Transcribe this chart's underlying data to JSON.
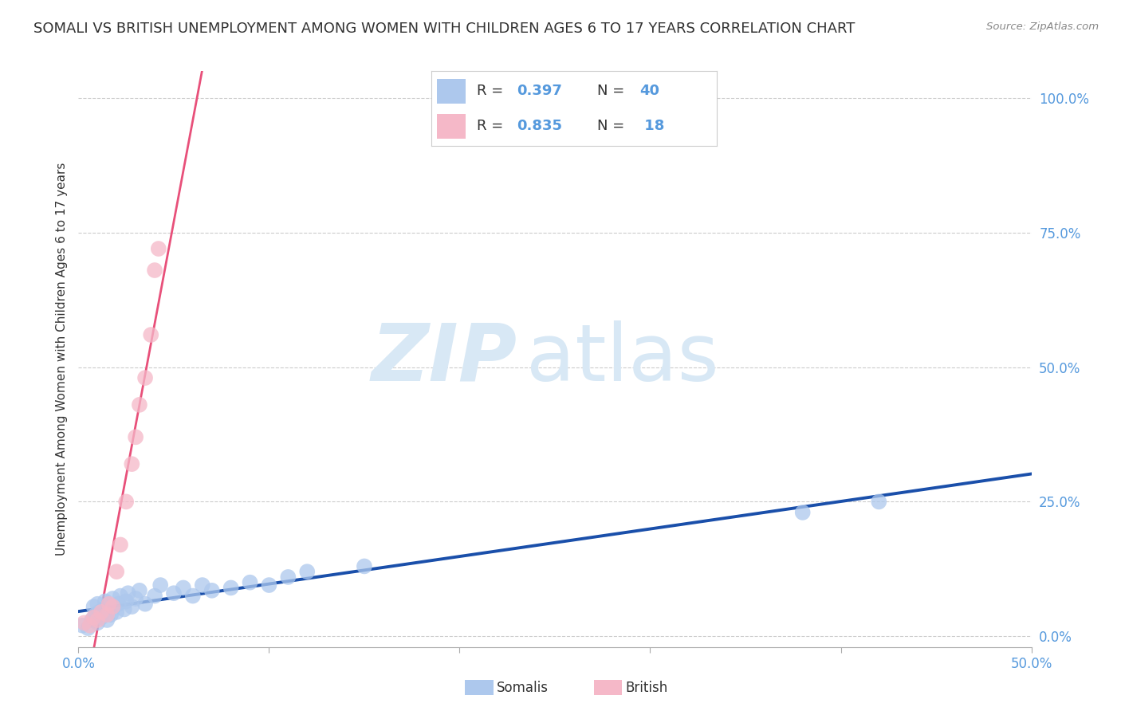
{
  "title": "SOMALI VS BRITISH UNEMPLOYMENT AMONG WOMEN WITH CHILDREN AGES 6 TO 17 YEARS CORRELATION CHART",
  "source": "Source: ZipAtlas.com",
  "ylabel": "Unemployment Among Women with Children Ages 6 to 17 years",
  "xlim": [
    0.0,
    0.5
  ],
  "ylim": [
    -0.02,
    1.05
  ],
  "x_ticks": [
    0.0,
    0.1,
    0.2,
    0.3,
    0.4,
    0.5
  ],
  "y_ticks": [
    0.0,
    0.25,
    0.5,
    0.75,
    1.0
  ],
  "x_tick_labels": [
    "0.0%",
    "",
    "",
    "",
    "",
    "50.0%"
  ],
  "y_tick_labels": [
    "",
    "25.0%",
    "50.0%",
    "75.0%",
    "100.0%"
  ],
  "somali_R": 0.397,
  "somali_N": 40,
  "british_R": 0.835,
  "british_N": 18,
  "somali_color": "#adc8ed",
  "somali_line_color": "#1a4faa",
  "british_color": "#f5b8c8",
  "british_line_color": "#e8507a",
  "tick_color": "#5599dd",
  "background_color": "#ffffff",
  "grid_color": "#cccccc",
  "watermark_zip": "ZIP",
  "watermark_atlas": "atlas",
  "watermark_color": "#d8e8f5",
  "title_fontsize": 13,
  "axis_label_fontsize": 11,
  "tick_fontsize": 12,
  "somali_x": [
    0.002,
    0.005,
    0.007,
    0.008,
    0.009,
    0.01,
    0.01,
    0.011,
    0.012,
    0.013,
    0.014,
    0.015,
    0.016,
    0.017,
    0.018,
    0.02,
    0.021,
    0.022,
    0.024,
    0.025,
    0.026,
    0.028,
    0.03,
    0.032,
    0.035,
    0.04,
    0.043,
    0.05,
    0.055,
    0.06,
    0.065,
    0.07,
    0.08,
    0.09,
    0.1,
    0.11,
    0.12,
    0.15,
    0.38,
    0.42
  ],
  "somali_y": [
    0.02,
    0.015,
    0.03,
    0.055,
    0.04,
    0.025,
    0.06,
    0.045,
    0.035,
    0.05,
    0.065,
    0.03,
    0.055,
    0.04,
    0.07,
    0.045,
    0.06,
    0.075,
    0.05,
    0.065,
    0.08,
    0.055,
    0.07,
    0.085,
    0.06,
    0.075,
    0.095,
    0.08,
    0.09,
    0.075,
    0.095,
    0.085,
    0.09,
    0.1,
    0.095,
    0.11,
    0.12,
    0.13,
    0.23,
    0.25
  ],
  "british_x": [
    0.003,
    0.006,
    0.008,
    0.01,
    0.012,
    0.015,
    0.016,
    0.018,
    0.02,
    0.022,
    0.025,
    0.028,
    0.03,
    0.032,
    0.035,
    0.038,
    0.04,
    0.042
  ],
  "british_y": [
    0.025,
    0.02,
    0.035,
    0.03,
    0.045,
    0.04,
    0.06,
    0.055,
    0.12,
    0.17,
    0.25,
    0.32,
    0.37,
    0.43,
    0.48,
    0.56,
    0.68,
    0.72
  ]
}
